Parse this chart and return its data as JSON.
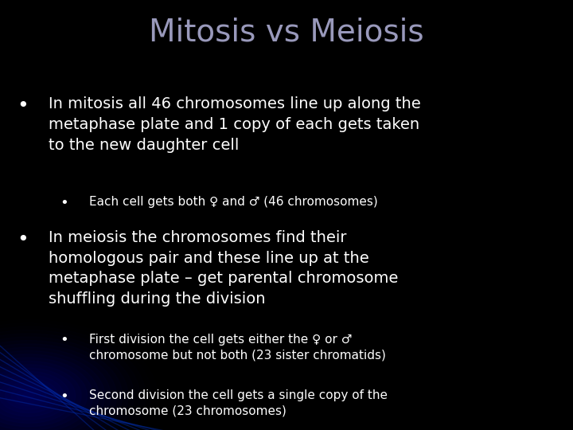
{
  "title": "Mitosis vs Meiosis",
  "title_color": "#9999bb",
  "title_fontsize": 28,
  "background_color": "#000000",
  "text_color": "#ffffff",
  "bullet1_main": "In mitosis all 46 chromosomes line up along the\nmetaphase plate and 1 copy of each gets taken\nto the new daughter cell",
  "bullet1_sub": [
    "Each cell gets both ♀ and ♂ (46 chromosomes)"
  ],
  "bullet2_main": "In meiosis the chromosomes find their\nhomologous pair and these line up at the\nmetaphase plate – get parental chromosome\nshuffling during the division",
  "bullet2_sub": [
    "First division the cell gets either the ♀ or ♂\nchromosome but not both (23 sister chromatids)",
    "Second division the cell gets a single copy of the\nchromosome (23 chromosomes)"
  ],
  "main_fontsize": 14,
  "sub_fontsize": 11,
  "bullet_color": "#ffffff",
  "glow_color": "#000066",
  "line_color": "#0033bb"
}
